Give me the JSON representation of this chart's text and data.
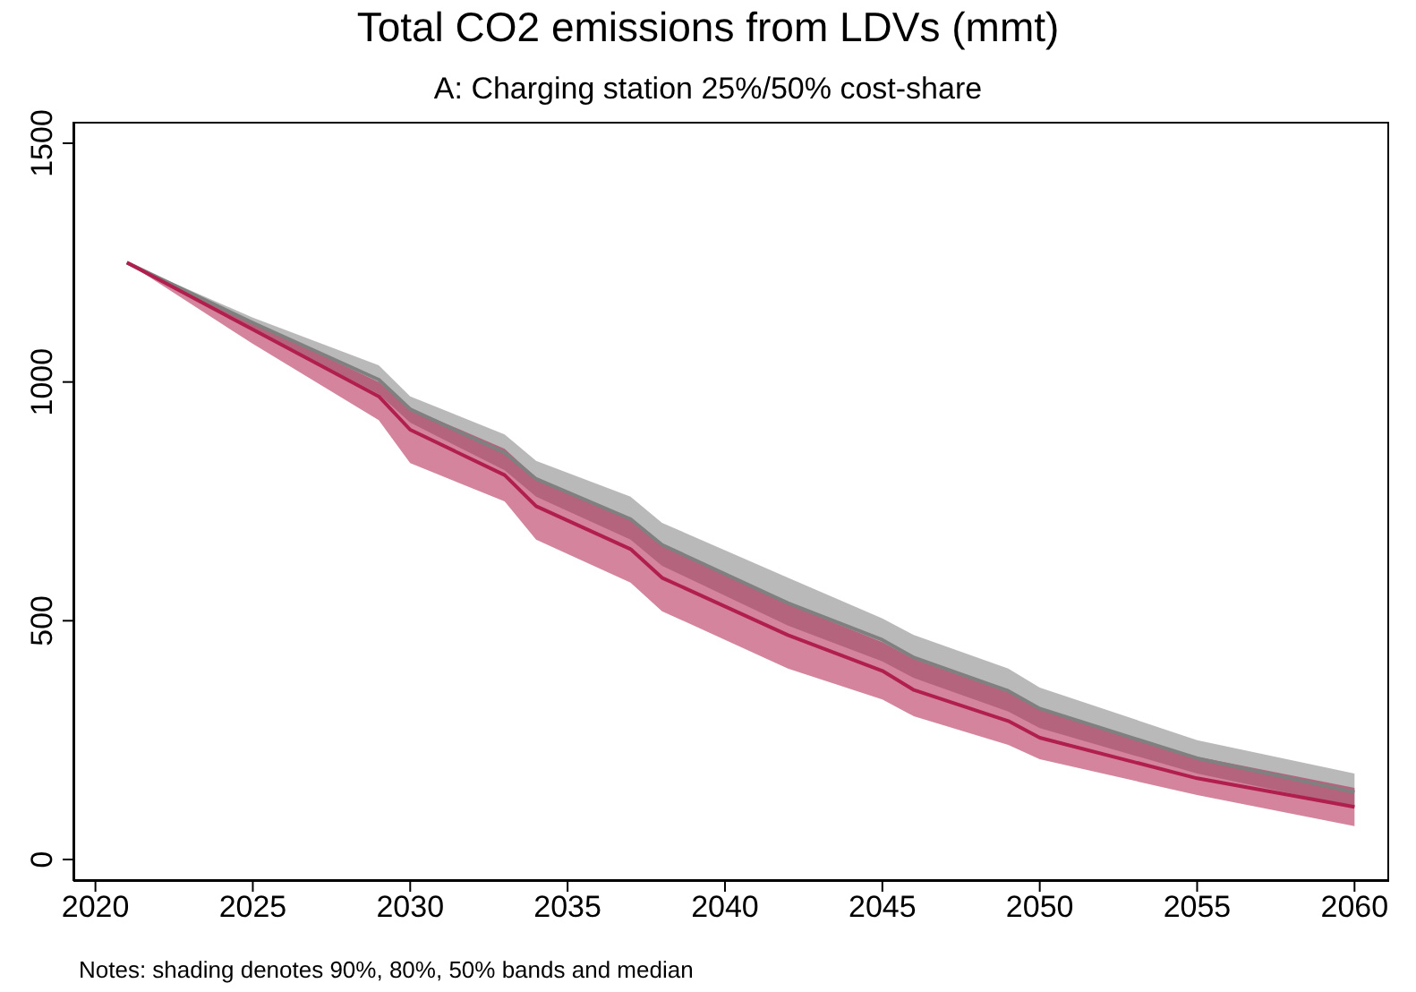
{
  "chart_data": {
    "type": "line",
    "title": "Total CO2 emissions from LDVs (mmt)",
    "subtitle": "A: Charging station 25%/50% cost-share",
    "x": [
      2021,
      2025,
      2029,
      2030,
      2033,
      2034,
      2037,
      2038,
      2042,
      2045,
      2046,
      2049,
      2050,
      2055,
      2060
    ],
    "series": [
      {
        "color": "#808080",
        "values": [
          1250,
          1124,
          1005,
          943,
          852,
          797,
          713,
          659,
          537,
          460,
          423,
          353,
          316,
          212,
          141
        ],
        "lower": [
          1250,
          1110,
          975,
          915,
          815,
          760,
          670,
          615,
          490,
          415,
          380,
          310,
          275,
          180,
          110
        ],
        "upper": [
          1250,
          1135,
          1035,
          970,
          890,
          835,
          760,
          705,
          590,
          505,
          470,
          400,
          360,
          250,
          180
        ]
      },
      {
        "color": "#b01f4d",
        "values": [
          1250,
          1110,
          970,
          900,
          805,
          740,
          650,
          590,
          470,
          395,
          355,
          290,
          255,
          170,
          110
        ],
        "lower": [
          1250,
          1080,
          920,
          830,
          750,
          670,
          580,
          520,
          400,
          335,
          300,
          240,
          210,
          135,
          70
        ],
        "upper": [
          1250,
          1125,
          1000,
          945,
          860,
          800,
          715,
          660,
          535,
          455,
          420,
          350,
          315,
          215,
          150
        ]
      }
    ],
    "xlim": [
      2019.3,
      2061.1
    ],
    "ylim": [
      -45,
      1545
    ],
    "xticks": [
      2020,
      2025,
      2030,
      2035,
      2040,
      2045,
      2050,
      2055,
      2060
    ],
    "yticks": [
      0,
      500,
      1000,
      1500
    ],
    "annotations": [
      "Notes: shading denotes 90%, 80%, 50% bands and median"
    ]
  }
}
